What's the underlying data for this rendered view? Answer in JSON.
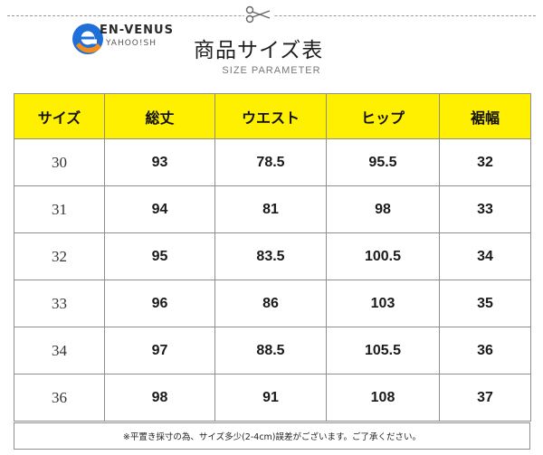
{
  "brand": {
    "name": "EN-VENUS",
    "sub": "YAHOO!SH"
  },
  "header": {
    "title": "商品サイズ表",
    "subtitle": "SIZE PARAMETER"
  },
  "table": {
    "headers": [
      "サイズ",
      "総丈",
      "ウエスト",
      "ヒップ",
      "裾幅"
    ],
    "rows": [
      [
        "30",
        "93",
        "78.5",
        "95.5",
        "32"
      ],
      [
        "31",
        "94",
        "81",
        "98",
        "33"
      ],
      [
        "32",
        "95",
        "83.5",
        "100.5",
        "34"
      ],
      [
        "33",
        "96",
        "86",
        "103",
        "35"
      ],
      [
        "34",
        "97",
        "88.5",
        "105.5",
        "36"
      ],
      [
        "36",
        "98",
        "91",
        "108",
        "37"
      ]
    ]
  },
  "note": "※平置き採寸の為、サイズ多少(2-4cm)誤差がございます。ご了承ください。",
  "colors": {
    "header_bg": "#fff000",
    "border": "#8e8e8e",
    "logo_blue": "#1e6fd9",
    "logo_orange": "#f28c1e"
  },
  "icons": {
    "cut_line": "scissors-icon",
    "logo": "brand-logo-icon"
  }
}
